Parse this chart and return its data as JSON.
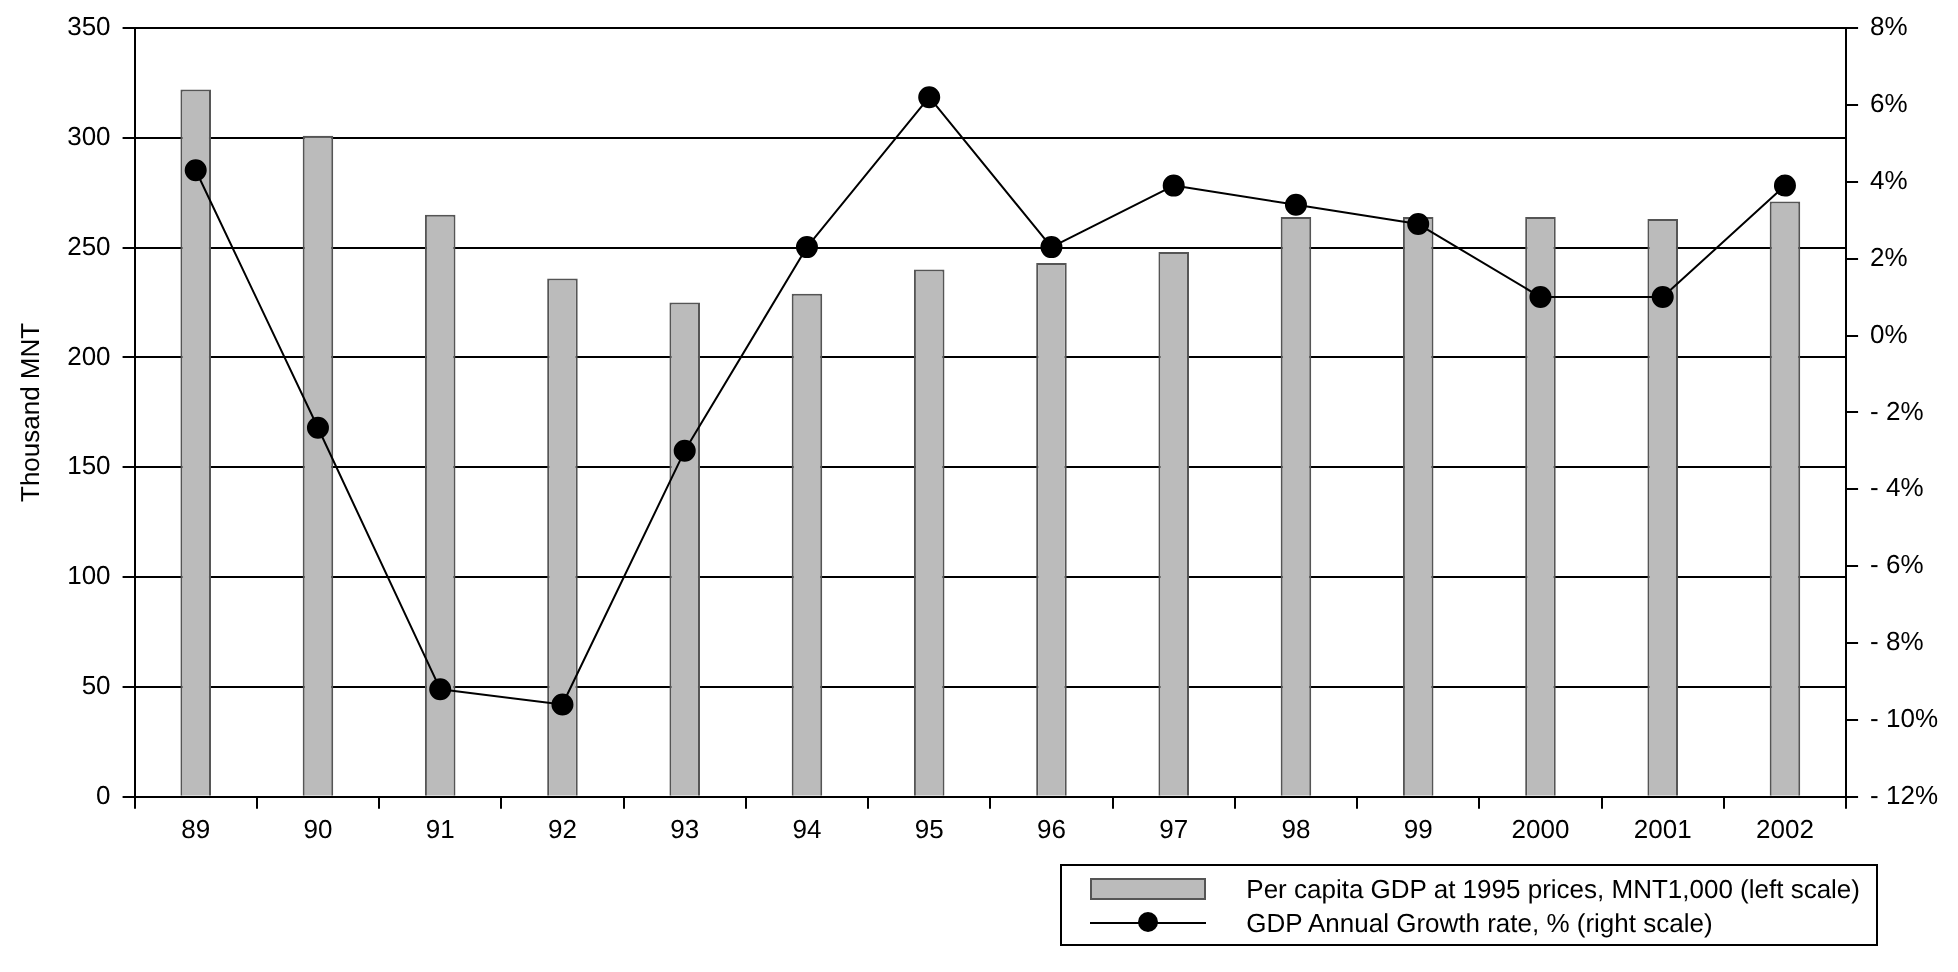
{
  "chart_data": {
    "type": "bar",
    "ylabel": "Thousand MNT",
    "categories": [
      "89",
      "90",
      "91",
      "92",
      "93",
      "94",
      "95",
      "96",
      "97",
      "98",
      "99",
      "2000",
      "2001",
      "2002"
    ],
    "series": [
      {
        "name": "Per capita GDP at 1995 prices, MNT1,000 (left scale)",
        "color": "#bbbbbb",
        "values": [
          322,
          301,
          265,
          236,
          225,
          229,
          240,
          243,
          248,
          264,
          264,
          264,
          263,
          271
        ]
      },
      {
        "name": "GDP Annual Growth rate, % (right scale)",
        "type": "line",
        "axis": "y2",
        "color": "#000000",
        "values": [
          4.3,
          -2.4,
          -9.2,
          -9.6,
          -3.0,
          2.3,
          6.2,
          2.3,
          3.9,
          3.4,
          2.9,
          1.0,
          1.0,
          3.9
        ]
      }
    ],
    "ylim": [
      0,
      350
    ],
    "yticks": [
      0,
      50,
      100,
      150,
      200,
      250,
      300,
      350
    ],
    "y2lim": [
      -12,
      8
    ],
    "y2ticks": [
      {
        "value": -12,
        "label": "- 12%"
      },
      {
        "value": -10,
        "label": "- 10%"
      },
      {
        "value": -8,
        "label": "- 8%"
      },
      {
        "value": -6,
        "label": "- 6%"
      },
      {
        "value": -4,
        "label": "- 4%"
      },
      {
        "value": -2,
        "label": "- 2%"
      },
      {
        "value": 0,
        "label": "0%"
      },
      {
        "value": 2,
        "label": "2%"
      },
      {
        "value": 4,
        "label": "4%"
      },
      {
        "value": 6,
        "label": "6%"
      },
      {
        "value": 8,
        "label": "8%"
      }
    ],
    "grid": "y",
    "legend": "bottom right",
    "marker": "circle",
    "line_style": "solid"
  }
}
